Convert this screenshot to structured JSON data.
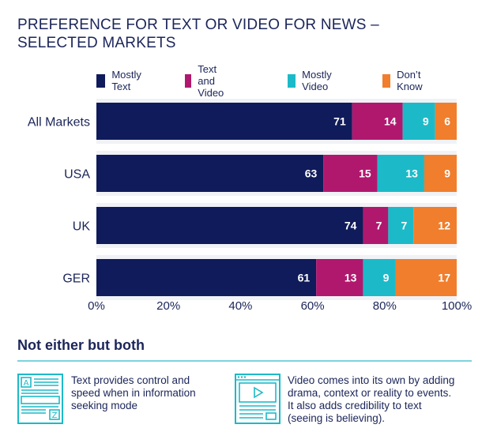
{
  "title_lines": [
    "PREFERENCE FOR TEXT OR VIDEO FOR NEWS –",
    "SELECTED MARKETS"
  ],
  "colors": {
    "title": "#1b2559",
    "accent_rule": "#7dd3dd"
  },
  "chart_data": {
    "type": "bar",
    "orientation": "horizontal",
    "stacked": true,
    "categories": [
      "All Markets",
      "USA",
      "UK",
      "GER"
    ],
    "series": [
      {
        "name": "Mostly Text",
        "color": "#0f1b5a",
        "values": [
          71,
          63,
          74,
          61
        ]
      },
      {
        "name": "Text and Video",
        "color": "#b0186e",
        "values": [
          14,
          15,
          7,
          13
        ]
      },
      {
        "name": "Mostly Video",
        "color": "#1cbac8",
        "values": [
          9,
          13,
          7,
          9
        ]
      },
      {
        "name": "Don’t Know",
        "color": "#f07e2c",
        "values": [
          6,
          9,
          12,
          17
        ]
      }
    ],
    "x_ticks": [
      "0%",
      "20%",
      "40%",
      "60%",
      "80%",
      "100%"
    ],
    "xlim": [
      0,
      100
    ],
    "legend_position": "top-right",
    "grid": false
  },
  "bottom": {
    "heading": "Not either but both",
    "items": [
      {
        "icon": "text-document-icon",
        "text_lines": [
          "Text provides control and",
          "speed when in information",
          "seeking mode"
        ]
      },
      {
        "icon": "video-player-icon",
        "text_lines": [
          "Video comes into its own by adding",
          "drama, context or reality to events.",
          "It also adds credibility to text",
          "(seeing is believing)."
        ]
      }
    ]
  }
}
